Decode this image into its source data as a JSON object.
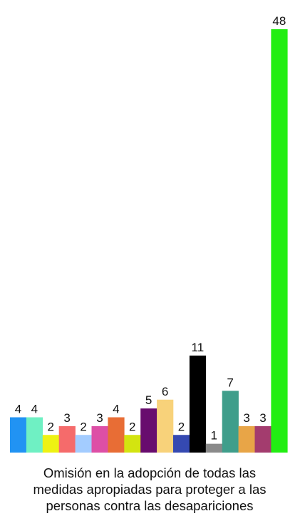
{
  "chart_data": {
    "type": "bar",
    "title": "",
    "xlabel": "",
    "ylabel": "",
    "ylim": [
      0,
      48
    ],
    "grid": false,
    "legend": "none",
    "values": [
      4,
      4,
      2,
      3,
      2,
      3,
      4,
      2,
      5,
      6,
      2,
      11,
      1,
      7,
      3,
      3,
      48
    ],
    "colors": [
      "#2193f3",
      "#6ff0c3",
      "#eef213",
      "#f56b6b",
      "#a3ccff",
      "#dd4fa6",
      "#e86d35",
      "#d3e410",
      "#680c6e",
      "#f8d27a",
      "#3549b1",
      "#000000",
      "#8a8a8a",
      "#3f9e8b",
      "#e8a547",
      "#a33c6e",
      "#22ee12"
    ]
  },
  "caption": {
    "lines": [
      "Omisión en la adopción de todas las",
      "medidas apropiadas para proteger a las",
      "personas contra las desapariciones"
    ]
  }
}
